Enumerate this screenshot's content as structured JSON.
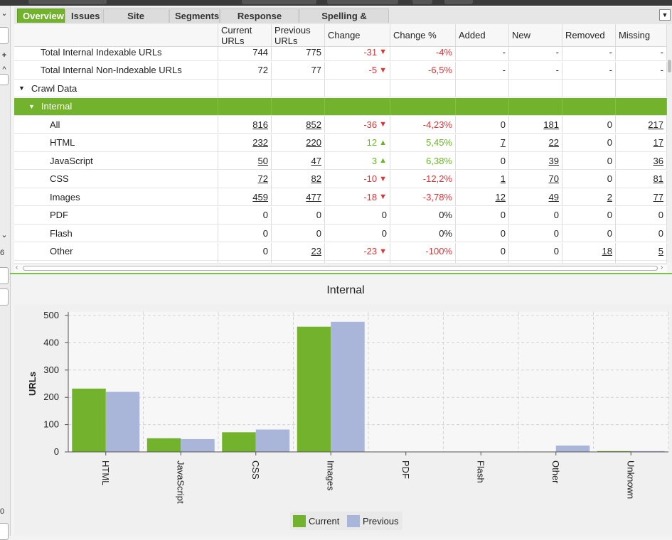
{
  "tabs": [
    {
      "label": "Overview",
      "active": true
    },
    {
      "label": "Issues",
      "active": false
    },
    {
      "label": "Site Structure",
      "active": false
    },
    {
      "label": "Segments",
      "active": false
    },
    {
      "label": "Response Times",
      "active": false
    },
    {
      "label": "Spelling & Grammar",
      "active": false
    }
  ],
  "left_panel": {
    "value_a": "6",
    "value_b": "0",
    "plus": "+"
  },
  "table": {
    "columns": [
      "",
      "Current URLs",
      "Previous URLs",
      "Change",
      "Change %",
      "Added",
      "New",
      "Removed",
      "Missing"
    ],
    "rows": [
      {
        "label": "Total Internal Indexable URLs",
        "indent": 2,
        "cur": "744",
        "prev": "775",
        "chg": "-31",
        "dir": "down",
        "pct": "-4%",
        "added": "-",
        "new": "-",
        "removed": "-",
        "missing": "-"
      },
      {
        "label": "Total Internal Non-Indexable URLs",
        "indent": 2,
        "cur": "72",
        "prev": "77",
        "chg": "-5",
        "dir": "down",
        "pct": "-6,5%",
        "added": "-",
        "new": "-",
        "removed": "-",
        "missing": "-"
      },
      {
        "label": "Crawl Data",
        "indent": 0,
        "group": true,
        "expanded": true
      },
      {
        "label": "Internal",
        "indent": 1,
        "group": true,
        "expanded": true,
        "highlight": true
      },
      {
        "label": "All",
        "indent": 3,
        "cur": "816",
        "prev": "852",
        "chg": "-36",
        "dir": "down",
        "pct": "-4,23%",
        "added": "0",
        "new": "181",
        "removed": "0",
        "missing": "217",
        "links": [
          "cur",
          "prev",
          "new",
          "missing"
        ]
      },
      {
        "label": "HTML",
        "indent": 3,
        "cur": "232",
        "prev": "220",
        "chg": "12",
        "dir": "up",
        "pct": "5,45%",
        "added": "7",
        "new": "22",
        "removed": "0",
        "missing": "17",
        "links": [
          "cur",
          "prev",
          "added",
          "new",
          "missing"
        ]
      },
      {
        "label": "JavaScript",
        "indent": 3,
        "cur": "50",
        "prev": "47",
        "chg": "3",
        "dir": "up",
        "pct": "6,38%",
        "added": "0",
        "new": "39",
        "removed": "0",
        "missing": "36",
        "links": [
          "cur",
          "prev",
          "new",
          "missing"
        ]
      },
      {
        "label": "CSS",
        "indent": 3,
        "cur": "72",
        "prev": "82",
        "chg": "-10",
        "dir": "down",
        "pct": "-12,2%",
        "added": "1",
        "new": "70",
        "removed": "0",
        "missing": "81",
        "links": [
          "cur",
          "prev",
          "added",
          "new",
          "missing"
        ]
      },
      {
        "label": "Images",
        "indent": 3,
        "cur": "459",
        "prev": "477",
        "chg": "-18",
        "dir": "down",
        "pct": "-3,78%",
        "added": "12",
        "new": "49",
        "removed": "2",
        "missing": "77",
        "links": [
          "cur",
          "prev",
          "added",
          "new",
          "removed",
          "missing"
        ]
      },
      {
        "label": "PDF",
        "indent": 3,
        "cur": "0",
        "prev": "0",
        "chg": "0",
        "dir": "none",
        "pct": "0%",
        "added": "0",
        "new": "0",
        "removed": "0",
        "missing": "0",
        "links": []
      },
      {
        "label": "Flash",
        "indent": 3,
        "cur": "0",
        "prev": "0",
        "chg": "0",
        "dir": "none",
        "pct": "0%",
        "added": "0",
        "new": "0",
        "removed": "0",
        "missing": "0",
        "links": []
      },
      {
        "label": "Other",
        "indent": 3,
        "cur": "0",
        "prev": "23",
        "chg": "-23",
        "dir": "down",
        "pct": "-100%",
        "added": "0",
        "new": "0",
        "removed": "18",
        "missing": "5",
        "links": [
          "prev",
          "removed",
          "missing"
        ]
      }
    ]
  },
  "colors": {
    "accent": "#72b22c",
    "current": "#72b22c",
    "previous": "#a9b6da",
    "negative": "#d23a3a",
    "positive": "#69b42a"
  },
  "chart_data": {
    "type": "bar",
    "title": "Internal",
    "xlabel": "",
    "ylabel": "URLs",
    "ylim": [
      0,
      500
    ],
    "yticks": [
      0,
      100,
      200,
      300,
      400,
      500
    ],
    "categories": [
      "HTML",
      "JavaScript",
      "CSS",
      "Images",
      "PDF",
      "Flash",
      "Other",
      "Unknown"
    ],
    "series": [
      {
        "name": "Current",
        "values": [
          232,
          50,
          72,
          459,
          0,
          0,
          0,
          3
        ]
      },
      {
        "name": "Previous",
        "values": [
          220,
          47,
          82,
          477,
          0,
          0,
          23,
          3
        ]
      }
    ],
    "grid": true,
    "legend": "bottom-center"
  }
}
